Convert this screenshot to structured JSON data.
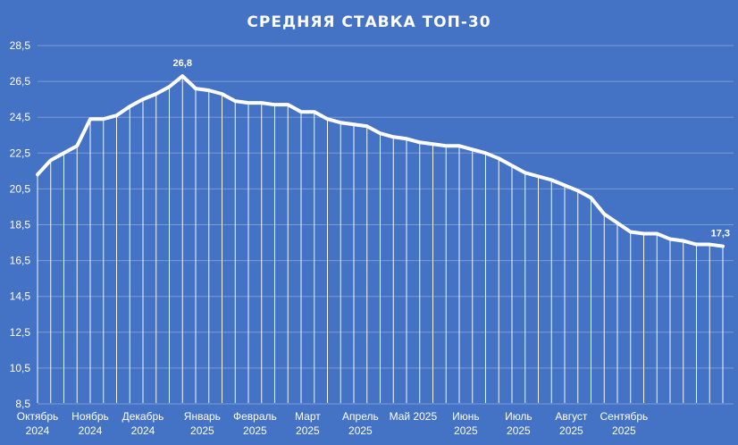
{
  "chart_data": {
    "type": "line",
    "title": "СРЕДНЯЯ СТАВКА ТОП-30",
    "xlabel": "",
    "ylabel": "",
    "ylim": [
      8.5,
      28.5
    ],
    "y_ticks": [
      "8,5",
      "10,5",
      "12,5",
      "14,5",
      "16,5",
      "18,5",
      "20,5",
      "22,5",
      "24,5",
      "26,5",
      "28,5"
    ],
    "x_month_labels": [
      {
        "month": "Октябрь",
        "year": "2024",
        "at": 0
      },
      {
        "month": "Ноябрь",
        "year": "2024",
        "at": 4
      },
      {
        "month": "Декабрь",
        "year": "2024",
        "at": 8
      },
      {
        "month": "Январь",
        "year": "2025",
        "at": 12.5
      },
      {
        "month": "Февраль",
        "year": "2025",
        "at": 16.5
      },
      {
        "month": "Март",
        "year": "2025",
        "at": 20.5
      },
      {
        "month": "Апрель",
        "year": "2025",
        "at": 24.5
      },
      {
        "month": "Май 2025",
        "year": "",
        "at": 28.5
      },
      {
        "month": "Июнь",
        "year": "2025",
        "at": 32.5
      },
      {
        "month": "Июль",
        "year": "2025",
        "at": 36.5
      },
      {
        "month": "Август",
        "year": "2025",
        "at": 40.5
      },
      {
        "month": "Сентябрь",
        "year": "2025",
        "at": 44.5
      }
    ],
    "series": [
      {
        "values": [
          21.3,
          22.1,
          22.5,
          22.9,
          24.4,
          24.4,
          24.6,
          25.1,
          25.5,
          25.8,
          26.2,
          26.8,
          26.1,
          26.0,
          25.8,
          25.4,
          25.3,
          25.3,
          25.2,
          25.2,
          24.8,
          24.8,
          24.4,
          24.2,
          24.1,
          24.0,
          23.6,
          23.4,
          23.3,
          23.1,
          23.0,
          22.9,
          22.9,
          22.7,
          22.5,
          22.2,
          21.8,
          21.4,
          21.2,
          21.0,
          20.7,
          20.4,
          20.0,
          19.1,
          18.6,
          18.1,
          18.0,
          18.0,
          17.7,
          17.6,
          17.4,
          17.4,
          17.3
        ]
      }
    ],
    "data_labels": [
      {
        "index": 11,
        "text": "26,8"
      },
      {
        "index": 52,
        "text": "17,3"
      }
    ],
    "colors": {
      "background": "#4472c4",
      "line": "#ffffff",
      "grid": "#ffffff"
    }
  }
}
